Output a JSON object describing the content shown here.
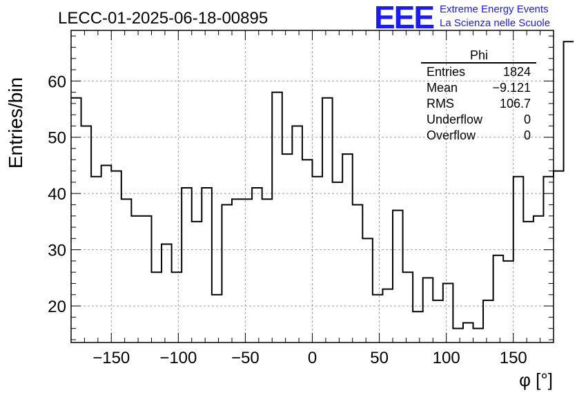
{
  "chart_data": {
    "type": "histogram",
    "title": "LECC-01-2025-06-18-00895",
    "xlabel": "φ [°]",
    "ylabel": "Entries/bin",
    "xlim": [
      -180,
      180
    ],
    "ylim": [
      13.5,
      69
    ],
    "xticks": [
      -150,
      -100,
      -50,
      0,
      50,
      100,
      150
    ],
    "yticks": [
      20,
      30,
      40,
      50,
      60
    ],
    "grid": true,
    "bin_width": 7.5,
    "bin_edges_start": -180,
    "values": [
      57,
      52,
      43,
      45,
      44,
      39,
      36,
      36,
      26,
      31,
      26,
      41,
      35,
      41,
      22,
      38,
      39,
      39,
      41,
      39,
      58,
      47,
      52,
      46,
      43,
      57,
      42,
      47,
      38,
      32,
      22,
      23,
      37,
      26,
      19,
      25,
      21,
      24,
      16,
      17,
      16,
      21,
      29,
      28,
      43,
      35,
      36,
      43,
      44,
      67
    ]
  },
  "stats": {
    "name": "Phi",
    "rows": [
      {
        "label": "Entries",
        "value": "1824"
      },
      {
        "label": "Mean",
        "value": "−9.121"
      },
      {
        "label": "RMS",
        "value": "106.7"
      },
      {
        "label": "Underflow",
        "value": "0"
      },
      {
        "label": "Overflow",
        "value": "0"
      }
    ]
  },
  "logo": {
    "mark": "EEE",
    "line1": "Extreme Energy Events",
    "line2": "La Scienza nelle Scuole"
  },
  "colors": {
    "logo": "#1a1aff",
    "line": "#000000",
    "grid": "#a0a0a0"
  }
}
